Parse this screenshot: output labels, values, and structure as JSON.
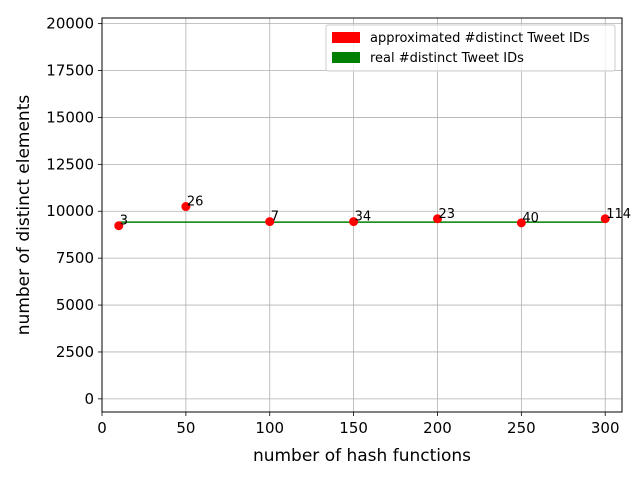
{
  "chart_data": {
    "type": "scatter",
    "title": "",
    "xlabel": "number of hash functions",
    "ylabel": "number of distinct elements",
    "xlim": [
      0,
      310
    ],
    "ylim": [
      -700,
      20300
    ],
    "xticks": [
      0,
      50,
      100,
      150,
      200,
      250,
      300
    ],
    "yticks": [
      0,
      2500,
      5000,
      7500,
      10000,
      12500,
      15000,
      17500,
      20000
    ],
    "grid": true,
    "legend_position": "top-right",
    "series": [
      {
        "name": "approximated #distinct Tweet IDs",
        "kind": "scatter",
        "color": "#ff0000",
        "points": [
          {
            "x": 10,
            "y": 9230,
            "label": "3"
          },
          {
            "x": 50,
            "y": 10250,
            "label": "26"
          },
          {
            "x": 100,
            "y": 9450,
            "label": "7"
          },
          {
            "x": 150,
            "y": 9450,
            "label": "34"
          },
          {
            "x": 200,
            "y": 9600,
            "label": "23"
          },
          {
            "x": 250,
            "y": 9380,
            "label": "40"
          },
          {
            "x": 300,
            "y": 9600,
            "label": "114"
          }
        ]
      },
      {
        "name": "real #distinct Tweet IDs",
        "kind": "line",
        "color": "#008000",
        "points": [
          {
            "x": 10,
            "y": 9420
          },
          {
            "x": 300,
            "y": 9420
          }
        ]
      }
    ]
  }
}
